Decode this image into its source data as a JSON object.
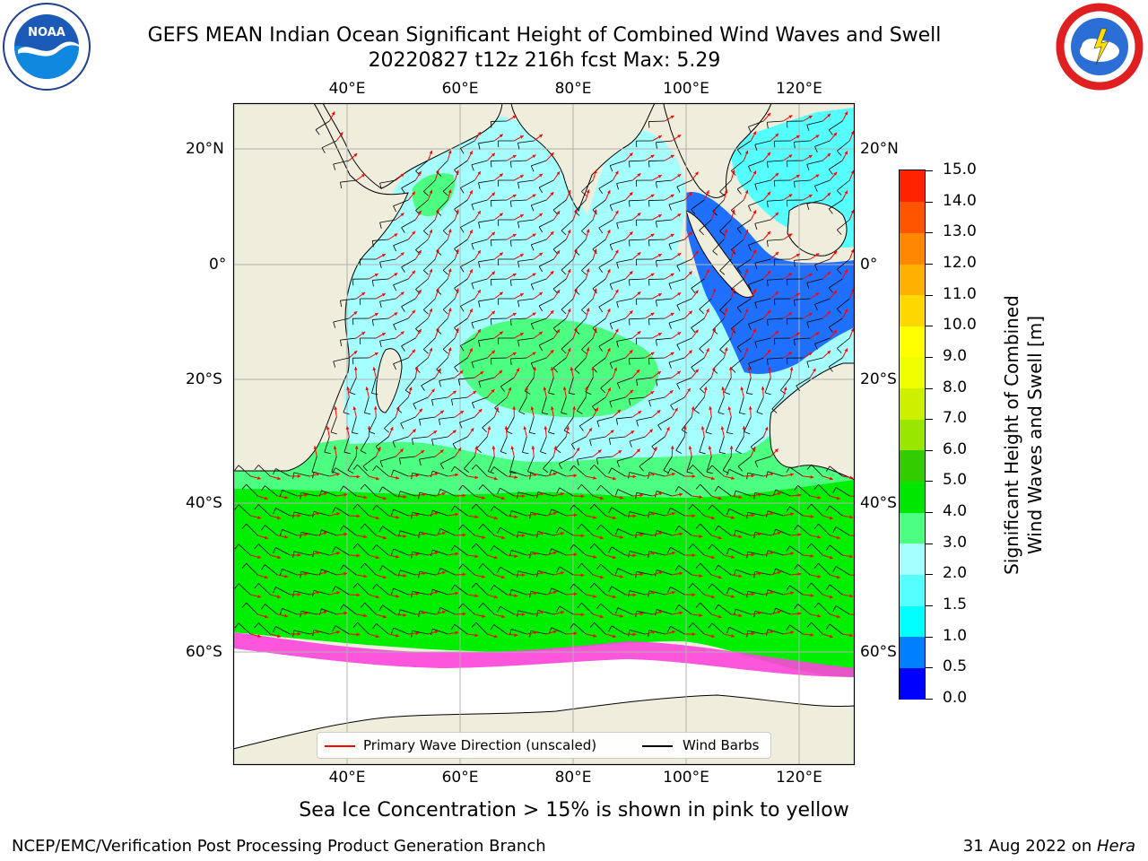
{
  "header": {
    "title_line1": "GEFS MEAN Indian Ocean Significant Height of Combined Wind Waves and Swell",
    "title_line2": "20220827 t12z 216h fcst   Max: 5.29"
  },
  "logos": {
    "left": "noaa-logo",
    "right": "nws-logo"
  },
  "map": {
    "lon_labels": [
      "40°E",
      "60°E",
      "80°E",
      "100°E",
      "120°E"
    ],
    "lat_labels": [
      "20°N",
      "0°",
      "20°S",
      "40°S",
      "60°S"
    ],
    "colors": {
      "land": "#efeedd",
      "ocean_light_cyan": "#a6ffff",
      "ocean_cyan": "#55ffff",
      "ocean_green": "#4dff80",
      "ocean_bright_green": "#00ee00",
      "wave_arrow": "#ff0000",
      "wind_barb": "#000000",
      "sea_ice": "#ff44dd",
      "gridline": "#b0b0b0"
    }
  },
  "colorbar": {
    "title_line1": "Significant Height of Combined",
    "title_line2": "Wind Waves and Swell [m]",
    "tick_labels": [
      "0.0",
      "0.5",
      "1.0",
      "1.5",
      "2.0",
      "3.0",
      "4.0",
      "5.0",
      "6.0",
      "7.0",
      "8.0",
      "9.0",
      "10.0",
      "11.0",
      "12.0",
      "13.0",
      "14.0",
      "15.0"
    ],
    "colors": [
      "#0000ff",
      "#0080ff",
      "#00ffff",
      "#55ffff",
      "#a6ffff",
      "#4dff80",
      "#00e600",
      "#33cc00",
      "#99e600",
      "#ccf000",
      "#eeff00",
      "#ffff00",
      "#ffd800",
      "#ffb000",
      "#ff8800",
      "#ff5500",
      "#ff2200"
    ]
  },
  "legend": {
    "wave_label": "Primary Wave Direction (unscaled)",
    "barb_label": "Wind Barbs"
  },
  "caption": "Sea Ice Concentration > 15% is shown in pink to yellow",
  "footer": {
    "left": "NCEP/EMC/Verification Post Processing Product Generation Branch",
    "right_date": "31 Aug 2022 on ",
    "right_host": "Hera"
  }
}
